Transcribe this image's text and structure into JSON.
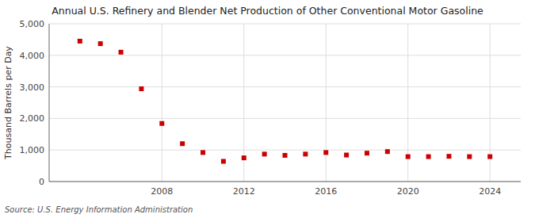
{
  "chart_data": {
    "type": "scatter",
    "title": "Annual U.S. Refinery and Blender Net Production of Other Conventional Motor Gasoline",
    "y_label": "Thousand Barrels per Day",
    "source": "Source: U.S. Energy Information Administration",
    "x": [
      2004,
      2005,
      2006,
      2007,
      2008,
      2009,
      2010,
      2011,
      2012,
      2013,
      2014,
      2015,
      2016,
      2017,
      2018,
      2019,
      2020,
      2021,
      2022,
      2023,
      2024
    ],
    "values": [
      4450,
      4370,
      4100,
      2940,
      1840,
      1200,
      920,
      640,
      750,
      870,
      830,
      870,
      920,
      840,
      900,
      950,
      790,
      790,
      800,
      790,
      790
    ],
    "color": "#cc0000",
    "marker": "square",
    "xlim": [
      2002.5,
      2025.5
    ],
    "xticks": [
      2008,
      2012,
      2016,
      2020,
      2024
    ],
    "ylim": [
      0,
      5000
    ],
    "yticks": [
      0,
      {
        "value": 1000,
        "label": "1,000"
      },
      {
        "value": 2000,
        "label": "2,000"
      },
      {
        "value": 3000,
        "label": "3,000"
      },
      {
        "value": 4000,
        "label": "4,000"
      },
      {
        "value": 5000,
        "label": "5,000"
      }
    ],
    "grid": true
  }
}
